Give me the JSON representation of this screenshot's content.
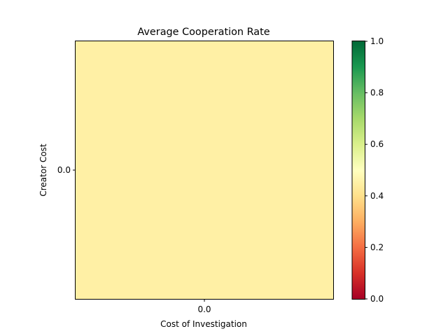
{
  "chart_data": {
    "type": "heatmap",
    "title": "Average Cooperation Rate",
    "xlabel": "Cost of Investigation",
    "ylabel": "Creator Cost",
    "x_categories": [
      "0.0"
    ],
    "y_categories": [
      "0.0"
    ],
    "values": [
      [
        0.45
      ]
    ],
    "colormap": "RdYlGn",
    "color_range": [
      0.0,
      1.0
    ],
    "colorbar_ticks": [
      "0.0",
      "0.2",
      "0.4",
      "0.6",
      "0.8",
      "1.0"
    ],
    "grid": false
  }
}
